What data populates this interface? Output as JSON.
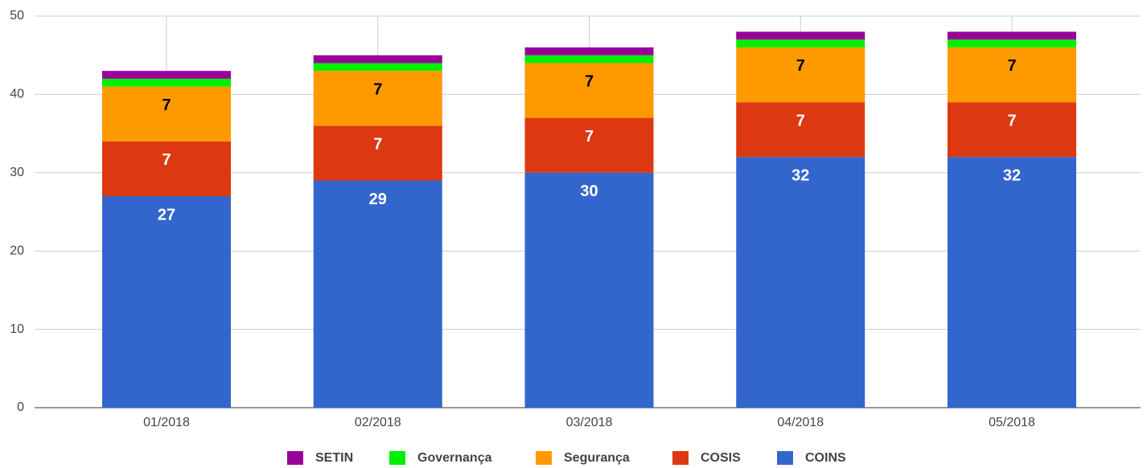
{
  "chart_data": {
    "type": "stacked_bar",
    "categories": [
      "01/2018",
      "02/2018",
      "03/2018",
      "04/2018",
      "05/2018"
    ],
    "series": [
      {
        "name": "COINS",
        "color": "#3366cc",
        "label_color": "#ffffff",
        "data_labels": true,
        "values": [
          27,
          29,
          30,
          32,
          32
        ]
      },
      {
        "name": "COSIS",
        "color": "#dc3912",
        "label_color": "#ffffff",
        "data_labels": true,
        "values": [
          7,
          7,
          7,
          7,
          7
        ]
      },
      {
        "name": "Segurança",
        "color": "#ff9900",
        "label_color": "#000000",
        "data_labels": true,
        "values": [
          7,
          7,
          7,
          7,
          7
        ]
      },
      {
        "name": "Governança",
        "color": "#00ee00",
        "data_labels": false,
        "values": [
          1,
          1,
          1,
          1,
          1
        ]
      },
      {
        "name": "SETIN",
        "color": "#990099",
        "data_labels": false,
        "values": [
          1,
          1,
          1,
          1,
          1
        ]
      }
    ],
    "ylim": [
      0,
      50
    ],
    "yticks": [
      0,
      10,
      20,
      30,
      40,
      50
    ],
    "grid": true,
    "legend": "bottom"
  }
}
